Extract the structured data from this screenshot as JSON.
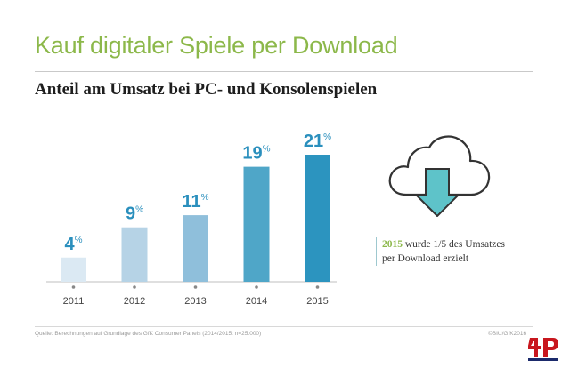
{
  "title": "Kauf digitaler Spiele per Download",
  "subtitle": "Anteil am Umsatz bei PC- und Konsolenspielen",
  "chart_data": {
    "type": "bar",
    "title": "Anteil am Umsatz bei PC- und Konsolenspielen",
    "categories": [
      "2011",
      "2012",
      "2013",
      "2014",
      "2015"
    ],
    "values": [
      4,
      9,
      11,
      19,
      21
    ],
    "value_suffix": "%",
    "colors": [
      "#dbe9f3",
      "#b6d3e6",
      "#8fbfdb",
      "#4fa6c8",
      "#2c94bf"
    ],
    "ylim": [
      0,
      21
    ],
    "grid": false,
    "legend": "none"
  },
  "cloud_icon": "cloud-download-icon",
  "note": {
    "year": "2015",
    "line1": " wurde 1/5 des Umsatzes",
    "line2": "per Download erzielt"
  },
  "source": "Quelle: Berechnungen auf Grundlage des GfK Consumer Panels (2014/2015: n=25.000)",
  "copyright": "©BIU/GfK2016",
  "logo_text": "4P",
  "colors": {
    "accent_green": "#8cb84a",
    "label_blue": "#2a8fbd",
    "cloud_fill": "#5ec3c9"
  }
}
